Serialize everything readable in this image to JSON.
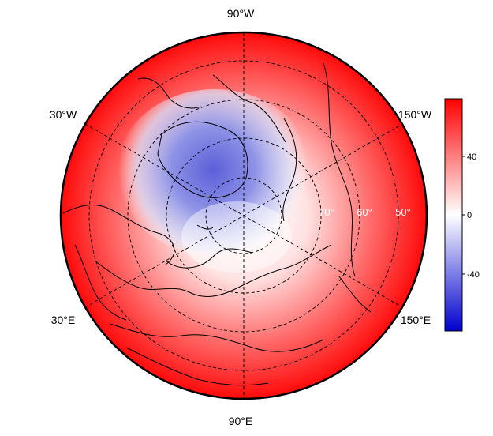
{
  "map": {
    "projection": "north-polar-orthographic",
    "lon_labels": [
      "90°W",
      "30°W",
      "150°W",
      "30°E",
      "150°E",
      "90°E"
    ],
    "lat_labels": [
      "70°",
      "60°",
      "50°"
    ],
    "colormap": [
      "#0000cc",
      "#ffffff",
      "#ff0000"
    ]
  },
  "colorbar": {
    "ticks": [
      "40",
      "0",
      "-40"
    ]
  }
}
